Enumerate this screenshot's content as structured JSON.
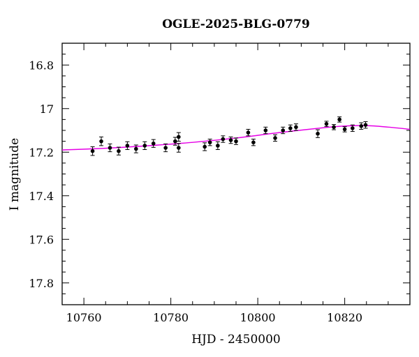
{
  "chart_data": {
    "type": "scatter",
    "title": "OGLE-2025-BLG-0779",
    "xlabel": "HJD - 2450000",
    "ylabel": "I magnitude",
    "xlim": [
      10755,
      10835
    ],
    "ylim": [
      17.9,
      16.7
    ],
    "y_inverted": true,
    "grid": false,
    "x_ticks": [
      10760,
      10780,
      10800,
      10820
    ],
    "x_tick_labels": [
      "10760",
      "10780",
      "10800",
      "10820"
    ],
    "y_ticks": [
      16.8,
      17.0,
      17.2,
      17.4,
      17.6,
      17.8
    ],
    "y_tick_labels": [
      "16.8",
      "17",
      "17.2",
      "17.4",
      "17.6",
      "17.8"
    ],
    "series": [
      {
        "kind": "points-with-errorbars",
        "color": "#000000",
        "points": [
          {
            "x": 10762.0,
            "y": 17.195,
            "err": 0.02
          },
          {
            "x": 10764.0,
            "y": 17.15,
            "err": 0.02
          },
          {
            "x": 10766.0,
            "y": 17.18,
            "err": 0.018
          },
          {
            "x": 10768.0,
            "y": 17.195,
            "err": 0.018
          },
          {
            "x": 10770.0,
            "y": 17.17,
            "err": 0.018
          },
          {
            "x": 10772.0,
            "y": 17.185,
            "err": 0.018
          },
          {
            "x": 10774.0,
            "y": 17.17,
            "err": 0.018
          },
          {
            "x": 10776.0,
            "y": 17.16,
            "err": 0.018
          },
          {
            "x": 10778.8,
            "y": 17.18,
            "err": 0.018
          },
          {
            "x": 10781.0,
            "y": 17.15,
            "err": 0.018
          },
          {
            "x": 10781.8,
            "y": 17.13,
            "err": 0.02
          },
          {
            "x": 10781.8,
            "y": 17.18,
            "err": 0.02
          },
          {
            "x": 10787.8,
            "y": 17.175,
            "err": 0.018
          },
          {
            "x": 10789.0,
            "y": 17.155,
            "err": 0.015
          },
          {
            "x": 10790.8,
            "y": 17.17,
            "err": 0.018
          },
          {
            "x": 10792.0,
            "y": 17.14,
            "err": 0.015
          },
          {
            "x": 10793.8,
            "y": 17.145,
            "err": 0.015
          },
          {
            "x": 10795.0,
            "y": 17.15,
            "err": 0.015
          },
          {
            "x": 10797.8,
            "y": 17.11,
            "err": 0.015
          },
          {
            "x": 10799.0,
            "y": 17.155,
            "err": 0.015
          },
          {
            "x": 10801.8,
            "y": 17.1,
            "err": 0.015
          },
          {
            "x": 10804.0,
            "y": 17.135,
            "err": 0.015
          },
          {
            "x": 10805.8,
            "y": 17.1,
            "err": 0.015
          },
          {
            "x": 10807.5,
            "y": 17.09,
            "err": 0.015
          },
          {
            "x": 10808.8,
            "y": 17.085,
            "err": 0.015
          },
          {
            "x": 10813.8,
            "y": 17.115,
            "err": 0.018
          },
          {
            "x": 10815.8,
            "y": 17.07,
            "err": 0.012
          },
          {
            "x": 10817.5,
            "y": 17.085,
            "err": 0.012
          },
          {
            "x": 10818.8,
            "y": 17.05,
            "err": 0.012
          },
          {
            "x": 10820.0,
            "y": 17.095,
            "err": 0.012
          },
          {
            "x": 10821.8,
            "y": 17.09,
            "err": 0.015
          },
          {
            "x": 10823.8,
            "y": 17.08,
            "err": 0.015
          },
          {
            "x": 10824.8,
            "y": 17.075,
            "err": 0.015
          }
        ]
      },
      {
        "kind": "model-curve",
        "color": "#e600e6",
        "points": [
          {
            "x": 10755,
            "y": 17.19
          },
          {
            "x": 10765,
            "y": 17.182
          },
          {
            "x": 10775,
            "y": 17.17
          },
          {
            "x": 10785,
            "y": 17.155
          },
          {
            "x": 10795,
            "y": 17.135
          },
          {
            "x": 10805,
            "y": 17.11
          },
          {
            "x": 10815,
            "y": 17.088
          },
          {
            "x": 10820,
            "y": 17.08
          },
          {
            "x": 10825,
            "y": 17.078
          },
          {
            "x": 10830,
            "y": 17.085
          },
          {
            "x": 10835,
            "y": 17.095
          }
        ]
      }
    ]
  }
}
